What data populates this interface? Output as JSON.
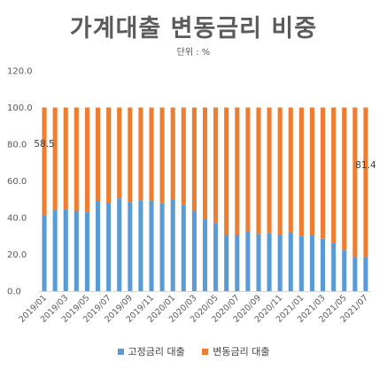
{
  "chart_data": {
    "type": "bar",
    "stacked": true,
    "title": "가계대출 변동금리 비중",
    "subtitle": "단위 : %",
    "ylim": [
      0,
      120
    ],
    "yticks": [
      "0.0",
      "20.0",
      "40.0",
      "60.0",
      "80.0",
      "100.0",
      "120.0"
    ],
    "grid": false,
    "legend_position": "bottom",
    "categories": [
      "2019/01",
      "2019/02",
      "2019/03",
      "2019/04",
      "2019/05",
      "2019/06",
      "2019/07",
      "2019/08",
      "2019/09",
      "2019/10",
      "2019/11",
      "2019/12",
      "2020/01",
      "2020/02",
      "2020/03",
      "2020/04",
      "2020/05",
      "2020/06",
      "2020/07",
      "2020/08",
      "2020/09",
      "2020/10",
      "2020/11",
      "2020/12",
      "2021/01",
      "2021/02",
      "2021/03",
      "2021/04",
      "2021/05",
      "2021/06",
      "2021/07"
    ],
    "xtick_labels": [
      "2019/01",
      "",
      "2019/03",
      "",
      "2019/05",
      "",
      "2019/07",
      "",
      "2019/09",
      "",
      "2019/11",
      "",
      "2020/01",
      "",
      "2020/03",
      "",
      "2020/05",
      "",
      "2020/07",
      "",
      "2020/09",
      "",
      "2020/11",
      "",
      "2021/01",
      "",
      "2021/03",
      "",
      "2021/05",
      "",
      "2021/07"
    ],
    "series": [
      {
        "name": "고정금리 대출",
        "color": "#5b9bd5",
        "values": [
          41.5,
          44.2,
          44.5,
          43.6,
          43.0,
          49.2,
          48.2,
          50.5,
          48.6,
          49.5,
          49.2,
          47.8,
          50.1,
          46.8,
          43.8,
          39.0,
          37.0,
          30.6,
          30.6,
          32.5,
          31.0,
          31.5,
          30.8,
          32.0,
          30.0,
          30.8,
          28.5,
          26.2,
          22.5,
          18.6,
          18.6
        ]
      },
      {
        "name": "변동금리 대출",
        "color": "#ed7d31",
        "values": [
          58.5,
          55.8,
          55.5,
          56.4,
          57.0,
          50.8,
          51.8,
          49.5,
          51.4,
          50.5,
          50.8,
          52.2,
          49.9,
          53.2,
          56.2,
          61.0,
          63.0,
          69.4,
          69.4,
          67.5,
          69.0,
          68.5,
          69.2,
          68.0,
          70.0,
          69.2,
          71.5,
          73.8,
          77.5,
          81.4,
          81.4
        ]
      }
    ],
    "annotations": [
      {
        "text": "58.5",
        "category": "2019/01"
      },
      {
        "text": "81.4",
        "category": "2021/07"
      }
    ]
  }
}
